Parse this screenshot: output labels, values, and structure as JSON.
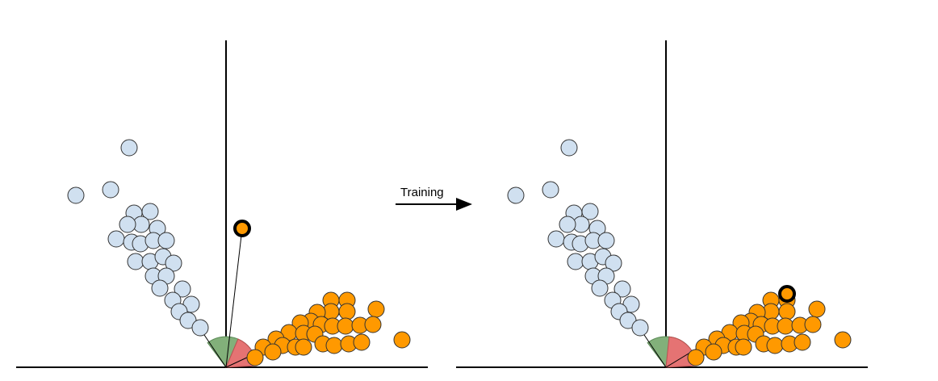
{
  "label": "Training",
  "colors": {
    "class_a_fill": "#d0e0f0",
    "class_b_fill": "#ff9900",
    "highlight_stroke": "#000000",
    "angle_green": "#82b07a",
    "angle_red": "#e57373",
    "axis": "#000000"
  },
  "panels": [
    {
      "name": "before",
      "highlight": {
        "x": 300,
        "y": 283
      },
      "red_sector_deg": [
        3,
        21
      ],
      "green_sector_deg": [
        21,
        58
      ]
    },
    {
      "name": "after",
      "highlight": {
        "x": 975,
        "y": 364
      },
      "red_sector_deg": [
        3,
        38
      ],
      "green_sector_deg": [
        38,
        58
      ]
    }
  ]
}
